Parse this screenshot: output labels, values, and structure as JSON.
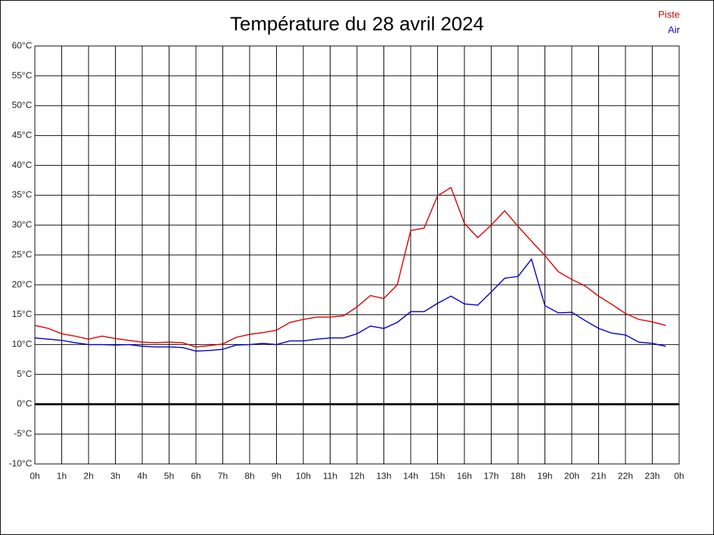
{
  "chart_data": {
    "type": "line",
    "title": "Température du 28 avril 2024",
    "x": [
      0,
      0.5,
      1,
      1.5,
      2,
      2.5,
      3,
      3.5,
      4,
      4.5,
      5,
      5.5,
      6,
      6.5,
      7,
      7.5,
      8,
      8.5,
      9,
      9.5,
      10,
      10.5,
      11,
      11.5,
      12,
      12.5,
      13,
      13.5,
      14,
      14.5,
      15,
      15.5,
      16,
      16.5,
      17,
      17.5,
      18,
      18.5,
      19,
      19.5,
      20,
      20.5,
      21,
      21.5,
      22,
      22.5,
      23,
      23.5
    ],
    "series": [
      {
        "name": "Piste",
        "color": "#dd0000",
        "values": [
          13.2,
          12.7,
          11.8,
          11.4,
          10.9,
          11.4,
          11.0,
          10.7,
          10.4,
          10.3,
          10.4,
          10.3,
          9.6,
          9.8,
          10.1,
          11.2,
          11.7,
          12.0,
          12.4,
          13.7,
          14.2,
          14.6,
          14.6,
          14.8,
          16.3,
          18.2,
          17.7,
          20.0,
          29.1,
          29.5,
          34.9,
          36.3,
          30.3,
          27.9,
          30.0,
          32.4,
          29.8,
          27.3,
          24.9,
          22.2,
          20.9,
          19.8,
          18.1,
          16.7,
          15.2,
          14.2,
          13.8,
          13.2
        ]
      },
      {
        "name": "Air",
        "color": "#0000cc",
        "values": [
          11.1,
          10.9,
          10.7,
          10.3,
          10.0,
          10.0,
          9.9,
          10.0,
          9.7,
          9.6,
          9.6,
          9.5,
          8.9,
          9.0,
          9.2,
          9.9,
          10.0,
          10.2,
          10.0,
          10.6,
          10.6,
          10.9,
          11.1,
          11.1,
          11.8,
          13.1,
          12.7,
          13.7,
          15.5,
          15.5,
          16.9,
          18.1,
          16.8,
          16.6,
          18.8,
          21.1,
          21.4,
          24.3,
          16.5,
          15.3,
          15.4,
          14.0,
          12.7,
          11.9,
          11.6,
          10.4,
          10.2,
          9.7
        ]
      }
    ],
    "xlim": [
      0,
      24
    ],
    "xticks": [
      {
        "value": 0,
        "label": "0h"
      },
      {
        "value": 1,
        "label": "1h"
      },
      {
        "value": 2,
        "label": "2h"
      },
      {
        "value": 3,
        "label": "3h"
      },
      {
        "value": 4,
        "label": "4h"
      },
      {
        "value": 5,
        "label": "5h"
      },
      {
        "value": 6,
        "label": "6h"
      },
      {
        "value": 7,
        "label": "7h"
      },
      {
        "value": 8,
        "label": "8h"
      },
      {
        "value": 9,
        "label": "9h"
      },
      {
        "value": 10,
        "label": "10h"
      },
      {
        "value": 11,
        "label": "11h"
      },
      {
        "value": 12,
        "label": "12h"
      },
      {
        "value": 13,
        "label": "13h"
      },
      {
        "value": 14,
        "label": "14h"
      },
      {
        "value": 15,
        "label": "15h"
      },
      {
        "value": 16,
        "label": "16h"
      },
      {
        "value": 17,
        "label": "17h"
      },
      {
        "value": 18,
        "label": "18h"
      },
      {
        "value": 19,
        "label": "19h"
      },
      {
        "value": 20,
        "label": "20h"
      },
      {
        "value": 21,
        "label": "21h"
      },
      {
        "value": 22,
        "label": "22h"
      },
      {
        "value": 23,
        "label": "23h"
      },
      {
        "value": 24,
        "label": "0h"
      }
    ],
    "ylim": [
      -10,
      60
    ],
    "yticks": [
      {
        "value": -10,
        "label": "-10°C"
      },
      {
        "value": -5,
        "label": "-5°C"
      },
      {
        "value": 0,
        "label": "0°C"
      },
      {
        "value": 5,
        "label": "5°C"
      },
      {
        "value": 10,
        "label": "10°C"
      },
      {
        "value": 15,
        "label": "15°C"
      },
      {
        "value": 20,
        "label": "20°C"
      },
      {
        "value": 25,
        "label": "25°C"
      },
      {
        "value": 30,
        "label": "30°C"
      },
      {
        "value": 35,
        "label": "35°C"
      },
      {
        "value": 40,
        "label": "40°C"
      },
      {
        "value": 45,
        "label": "45°C"
      },
      {
        "value": 50,
        "label": "50°C"
      },
      {
        "value": 55,
        "label": "55°C"
      },
      {
        "value": 60,
        "label": "60°C"
      }
    ],
    "grid": true,
    "legend": "top-right"
  }
}
